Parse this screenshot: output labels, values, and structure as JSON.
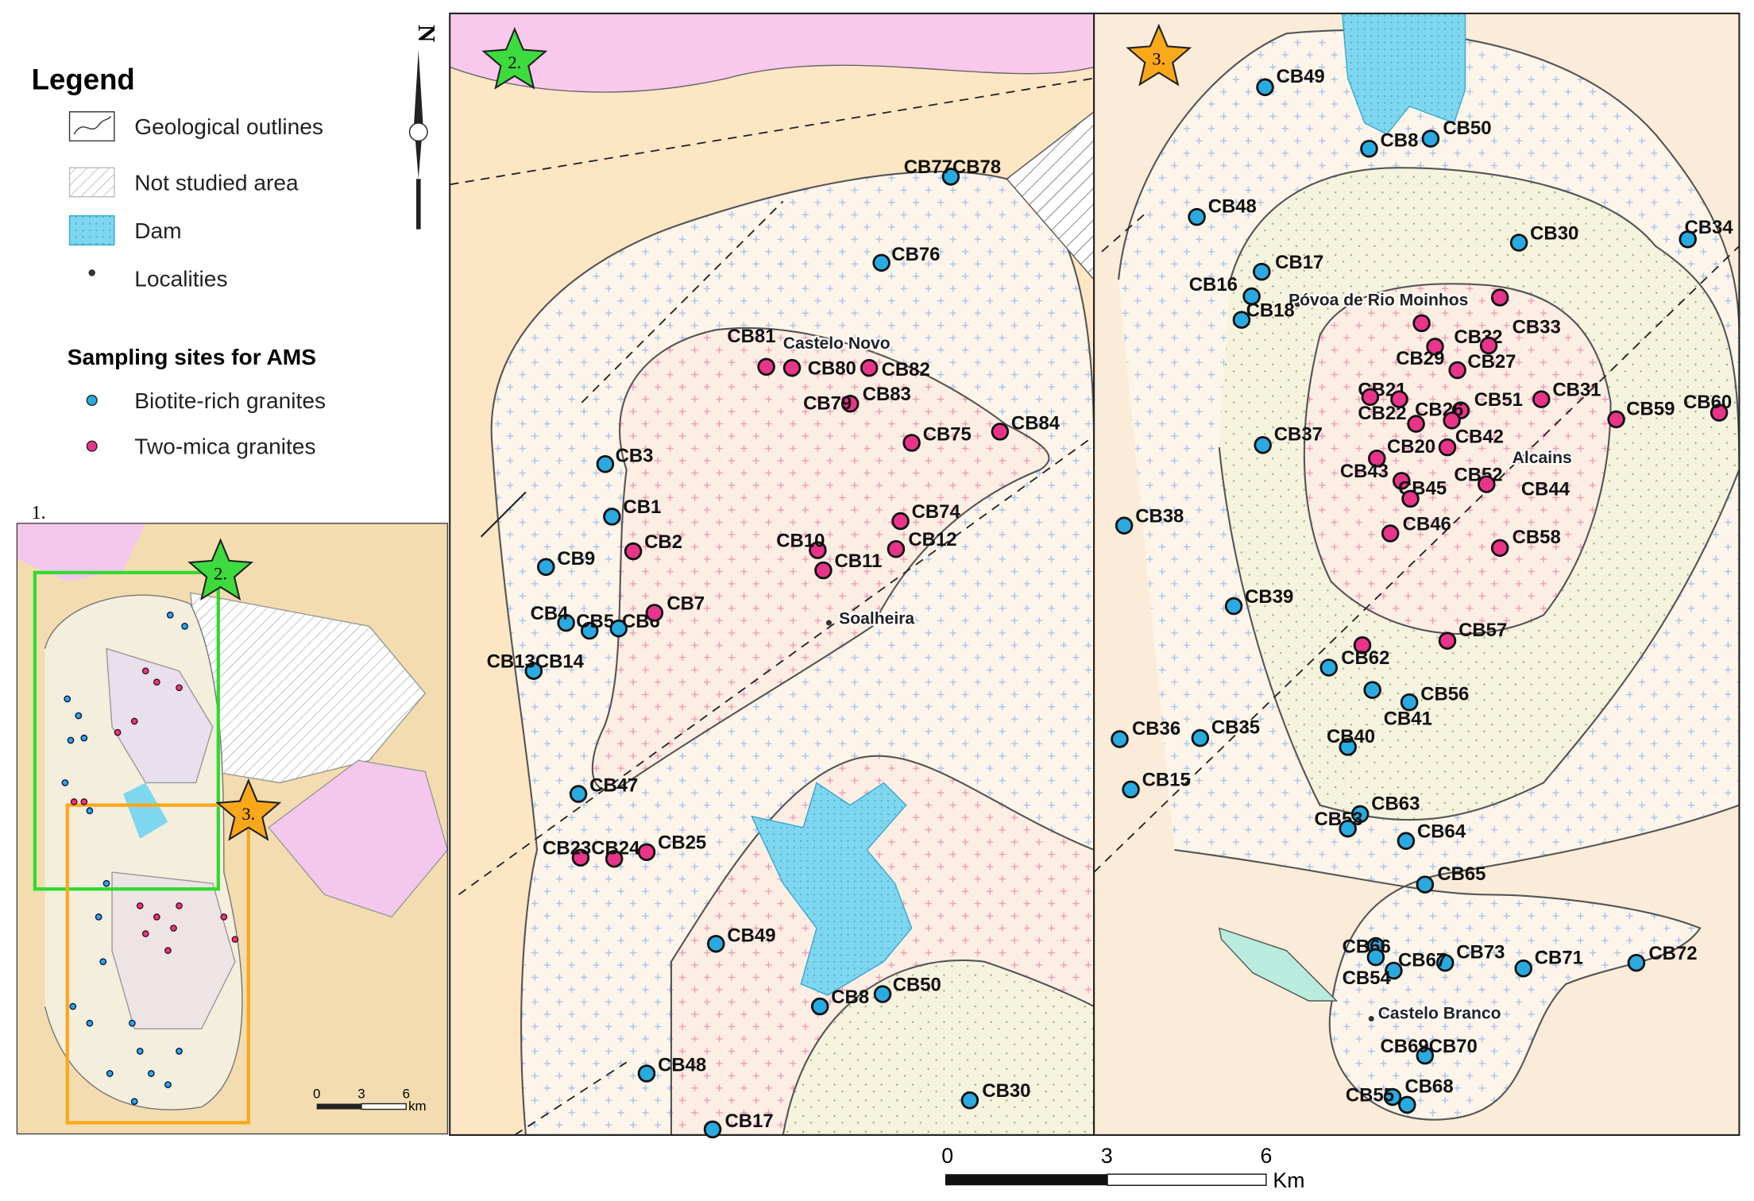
{
  "legend": {
    "title": "Legend",
    "items": [
      "Geological outlines",
      "Not studied area",
      "Dam",
      "Localities"
    ],
    "sampling_title": "Sampling sites for AMS",
    "groups": [
      {
        "name": "Biotite-rich granites",
        "color": "#29abe2"
      },
      {
        "name": "Two-mica granites",
        "color": "#e8358a"
      }
    ]
  },
  "north": "N",
  "inset": {
    "label": "1.",
    "stars": [
      "2.",
      "3."
    ],
    "scale": [
      "0",
      "3",
      "6"
    ],
    "scale_unit": "km"
  },
  "map_2": {
    "star": "2.",
    "localities": [
      "Castelo Novo",
      "Soalheira"
    ],
    "biotite_rich": [
      "CB77CB78",
      "CB76",
      "CB3",
      "CB1",
      "CB9",
      "CB4",
      "CB5",
      "CB6",
      "CB13CB14",
      "CB47",
      "CB49",
      "CB8",
      "CB50",
      "CB48",
      "CB17",
      "CB30"
    ],
    "two_mica": [
      "CB81",
      "CB80",
      "CB82",
      "CB79",
      "CB83",
      "CB75",
      "CB84",
      "CB74",
      "CB12",
      "CB10",
      "CB11",
      "CB2",
      "CB7",
      "CB23CB24",
      "CB25"
    ]
  },
  "map_3": {
    "star": "3.",
    "localities": [
      "Póvoa de Rio Moinhos",
      "Alcains",
      "Castelo Branco"
    ],
    "biotite_rich": [
      "CB49",
      "CB8",
      "CB50",
      "CB48",
      "CB30",
      "CB34",
      "CB17",
      "CB16",
      "CB18",
      "CB37",
      "CB38",
      "CB39",
      "CB56",
      "CB41",
      "CB40",
      "CB36",
      "CB35",
      "CB15",
      "CB53",
      "CB63",
      "CB64",
      "CB65",
      "CB66",
      "CB54",
      "CB67",
      "CB73",
      "CB71",
      "CB72",
      "CB69CB70",
      "CB55",
      "CB68"
    ],
    "two_mica": [
      "CB33",
      "CB32",
      "CB29",
      "CB27",
      "CB21",
      "CB31",
      "CB51",
      "CB22",
      "CB26",
      "CB42",
      "CB59",
      "CB60",
      "CB20",
      "CB52",
      "CB43",
      "CB45",
      "CB44",
      "CB46",
      "CB58",
      "CB57",
      "CB62"
    ]
  },
  "scale": {
    "ticks": [
      "0",
      "3",
      "6"
    ],
    "unit": "Km"
  }
}
